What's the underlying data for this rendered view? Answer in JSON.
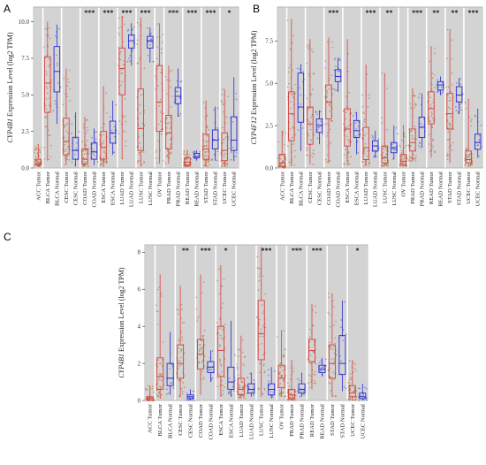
{
  "chart_data": [
    {
      "panel": "A",
      "type": "box",
      "ylabel": "Expression Level (log2 TPM)",
      "ylabel_gene": "CYP4B1",
      "ylim": [
        0,
        11
      ],
      "yticks": [
        "0.0",
        "2.5",
        "5.0",
        "7.5",
        "10.0"
      ],
      "ytick_values": [
        0,
        2.5,
        5,
        7.5,
        10
      ],
      "categories": [
        "ACC Tumor",
        "BLCA Tumor",
        "BLCA Normal",
        "CESC Tumor",
        "CESC Normal",
        "COAD Tumor",
        "COAD Normal",
        "ESCA Tumor",
        "ESCA Normal",
        "LUAD Tumor",
        "LUAD Normal",
        "LUSC Tumor",
        "LUSC Normal",
        "OV Tumor",
        "PRAD Tumor",
        "PRAD Normal",
        "READ Tumor",
        "READ Normal",
        "STAD Tumor",
        "STAD Normal",
        "UCEC Tumor",
        "UCEC Normal"
      ],
      "boxes": [
        [
          0.1,
          0.2,
          0.3,
          0.6,
          1.6
        ],
        [
          0.5,
          3.8,
          5.8,
          7.6,
          10.0
        ],
        [
          3.0,
          5.2,
          6.6,
          8.3,
          9.8
        ],
        [
          0.2,
          0.9,
          1.8,
          3.4,
          6.8
        ],
        [
          0.1,
          0.6,
          1.2,
          2.1,
          3.8
        ],
        [
          0.1,
          0.3,
          0.6,
          1.3,
          3.5
        ],
        [
          0.2,
          0.6,
          1.1,
          1.7,
          2.7
        ],
        [
          0.1,
          0.6,
          1.4,
          2.5,
          5.6
        ],
        [
          0.9,
          1.7,
          2.4,
          3.2,
          4.6
        ],
        [
          0.6,
          5.0,
          6.8,
          8.2,
          10.4
        ],
        [
          7.0,
          8.2,
          8.7,
          9.1,
          9.9
        ],
        [
          0.1,
          1.2,
          2.7,
          5.4,
          10.3
        ],
        [
          7.2,
          8.2,
          8.7,
          9.0,
          9.6
        ],
        [
          0.3,
          2.5,
          4.5,
          7.0,
          9.9
        ],
        [
          0.3,
          1.3,
          2.4,
          3.6,
          7.0
        ],
        [
          3.5,
          4.4,
          4.9,
          5.5,
          6.8
        ],
        [
          0.1,
          0.2,
          0.4,
          0.7,
          1.2
        ],
        [
          0.5,
          0.7,
          0.8,
          1.0,
          1.2
        ],
        [
          0.1,
          0.6,
          1.3,
          2.3,
          4.6
        ],
        [
          0.5,
          1.3,
          1.9,
          2.6,
          4.2
        ],
        [
          0.1,
          0.5,
          1.2,
          2.4,
          5.4
        ],
        [
          0.5,
          1.2,
          1.9,
          3.5,
          6.2
        ]
      ],
      "significance": [
        {
          "pair": [
            5,
            6
          ],
          "label": "***"
        },
        {
          "pair": [
            7,
            8
          ],
          "label": "***"
        },
        {
          "pair": [
            9,
            10
          ],
          "label": "***"
        },
        {
          "pair": [
            11,
            12
          ],
          "label": "***"
        },
        {
          "pair": [
            14,
            15
          ],
          "label": "***"
        },
        {
          "pair": [
            16,
            17
          ],
          "label": "***"
        },
        {
          "pair": [
            18,
            19
          ],
          "label": "***"
        },
        {
          "pair": [
            20,
            21
          ],
          "label": "*"
        }
      ]
    },
    {
      "panel": "B",
      "type": "box",
      "ylabel": "Expression Level (log2 TPM)",
      "ylabel_gene": "CYP4F12",
      "ylim": [
        0,
        9.5
      ],
      "yticks": [
        "0.0",
        "2.5",
        "5.0",
        "7.5"
      ],
      "ytick_values": [
        0,
        2.5,
        5,
        7.5
      ],
      "categories": [
        "ACC Tumor",
        "BLCA Tumor",
        "BLCA Normal",
        "CESC Tumor",
        "CESC Normal",
        "COAD Tumor",
        "COAD Normal",
        "ESCA Tumor",
        "ESCA Normal",
        "LUAD Tumor",
        "LUAD Normal",
        "LUSC Tumor",
        "LUSC Normal",
        "OV Tumor",
        "PRAD Tumor",
        "PRAD Normal",
        "READ Tumor",
        "READ Normal",
        "STAD Tumor",
        "STAD Normal",
        "UCEC Tumor",
        "UCEC Normal"
      ],
      "boxes": [
        [
          0.0,
          0.1,
          0.3,
          0.8,
          2.2
        ],
        [
          0.1,
          1.6,
          3.2,
          4.5,
          8.8
        ],
        [
          1.0,
          2.7,
          3.6,
          5.6,
          6.1
        ],
        [
          0.2,
          1.4,
          2.6,
          3.6,
          7.6
        ],
        [
          1.4,
          2.1,
          2.5,
          2.9,
          3.4
        ],
        [
          0.3,
          2.9,
          3.9,
          4.9,
          7.7
        ],
        [
          4.5,
          5.1,
          5.4,
          5.8,
          6.5
        ],
        [
          0.2,
          1.3,
          2.3,
          3.5,
          7.6
        ],
        [
          0.8,
          1.8,
          2.2,
          2.8,
          3.3
        ],
        [
          0.1,
          0.5,
          1.2,
          2.4,
          6.1
        ],
        [
          0.6,
          1.0,
          1.3,
          1.6,
          2.2
        ],
        [
          0.1,
          0.3,
          0.6,
          1.3,
          5.6
        ],
        [
          0.5,
          0.9,
          1.2,
          1.5,
          2.5
        ],
        [
          0.1,
          0.2,
          0.4,
          0.8,
          2.5
        ],
        [
          0.4,
          1.0,
          1.5,
          2.3,
          4.7
        ],
        [
          1.2,
          1.8,
          2.4,
          3.0,
          4.4
        ],
        [
          0.6,
          2.6,
          3.5,
          4.5,
          7.2
        ],
        [
          4.3,
          4.6,
          4.9,
          5.1,
          5.4
        ],
        [
          0.3,
          2.3,
          3.2,
          4.4,
          8.2
        ],
        [
          3.2,
          3.9,
          4.3,
          4.8,
          5.3
        ],
        [
          0.1,
          0.3,
          0.5,
          1.0,
          4.1
        ],
        [
          0.6,
          1.1,
          1.5,
          2.0,
          3.5
        ]
      ],
      "significance": [
        {
          "pair": [
            5,
            6
          ],
          "label": "***"
        },
        {
          "pair": [
            9,
            10
          ],
          "label": "***"
        },
        {
          "pair": [
            11,
            12
          ],
          "label": "**"
        },
        {
          "pair": [
            14,
            15
          ],
          "label": "***"
        },
        {
          "pair": [
            16,
            17
          ],
          "label": "**"
        },
        {
          "pair": [
            18,
            19
          ],
          "label": "**"
        },
        {
          "pair": [
            20,
            21
          ],
          "label": "***"
        }
      ]
    },
    {
      "panel": "C",
      "type": "box",
      "ylabel": "Expression Level (log2 TPM)",
      "ylabel_gene": "CYP4B1",
      "ylim": [
        0,
        8.4
      ],
      "yticks": [
        "0",
        "2",
        "4",
        "6",
        "8"
      ],
      "ytick_values": [
        0,
        2,
        4,
        6,
        8
      ],
      "categories": [
        "ACC Tumor",
        "BLCA Tumor",
        "BLCA Normal",
        "CESC Tumor",
        "CESC Normal",
        "COAD Tumor",
        "COAD Normal",
        "ESCA Tumor",
        "ESCA Normal",
        "LUAD Tumor",
        "LUAD Normal",
        "LUSC Tumor",
        "LUSC Normal",
        "OV Tumor",
        "PRAD Tumor",
        "PRAD Normal",
        "READ Tumor",
        "READ Normal",
        "STAD Tumor",
        "STAD Normal",
        "UCEC Tumor",
        "UCEC Normal"
      ],
      "boxes": [
        [
          0.0,
          0.0,
          0.1,
          0.2,
          0.8
        ],
        [
          0.1,
          0.6,
          1.3,
          2.3,
          6.8
        ],
        [
          0.3,
          0.8,
          1.2,
          2.0,
          3.7
        ],
        [
          0.2,
          1.2,
          2.0,
          3.0,
          6.2
        ],
        [
          0.0,
          0.1,
          0.2,
          0.3,
          0.6
        ],
        [
          0.3,
          1.7,
          2.5,
          3.3,
          6.8
        ],
        [
          1.0,
          1.5,
          1.8,
          2.1,
          2.7
        ],
        [
          0.2,
          1.3,
          2.7,
          4.0,
          7.3
        ],
        [
          0.2,
          0.6,
          1.0,
          1.8,
          4.3
        ],
        [
          0.1,
          0.3,
          0.6,
          1.2,
          3.5
        ],
        [
          0.2,
          0.4,
          0.6,
          0.9,
          1.5
        ],
        [
          0.2,
          2.2,
          3.6,
          5.4,
          8.3
        ],
        [
          0.1,
          0.3,
          0.6,
          0.9,
          1.8
        ],
        [
          0.2,
          0.7,
          1.2,
          1.9,
          3.8
        ],
        [
          0.0,
          0.1,
          0.3,
          0.6,
          2.2
        ],
        [
          0.2,
          0.4,
          0.6,
          0.9,
          1.5
        ],
        [
          0.6,
          2.1,
          2.7,
          3.3,
          5.2
        ],
        [
          1.3,
          1.5,
          1.7,
          1.9,
          2.3
        ],
        [
          0.2,
          1.2,
          2.0,
          3.0,
          5.8
        ],
        [
          0.5,
          1.4,
          2.0,
          3.5,
          5.4
        ],
        [
          0.0,
          0.2,
          0.4,
          0.8,
          2.2
        ],
        [
          0.0,
          0.1,
          0.2,
          0.4,
          0.9
        ]
      ],
      "significance": [
        {
          "pair": [
            3,
            4
          ],
          "label": "**"
        },
        {
          "pair": [
            5,
            6
          ],
          "label": "***"
        },
        {
          "pair": [
            7,
            8
          ],
          "label": "*"
        },
        {
          "pair": [
            11,
            12
          ],
          "label": "***"
        },
        {
          "pair": [
            14,
            15
          ],
          "label": "***"
        },
        {
          "pair": [
            16,
            17
          ],
          "label": "***"
        },
        {
          "pair": [
            20,
            21
          ],
          "label": "*"
        }
      ],
      "omitted_categories": []
    }
  ],
  "colors": {
    "tumor": "#d94040",
    "tumor_points": "#b5641f",
    "normal": "#2b2bd6",
    "normal_points": "#3d52d5",
    "shade": "#d3d3d3"
  }
}
